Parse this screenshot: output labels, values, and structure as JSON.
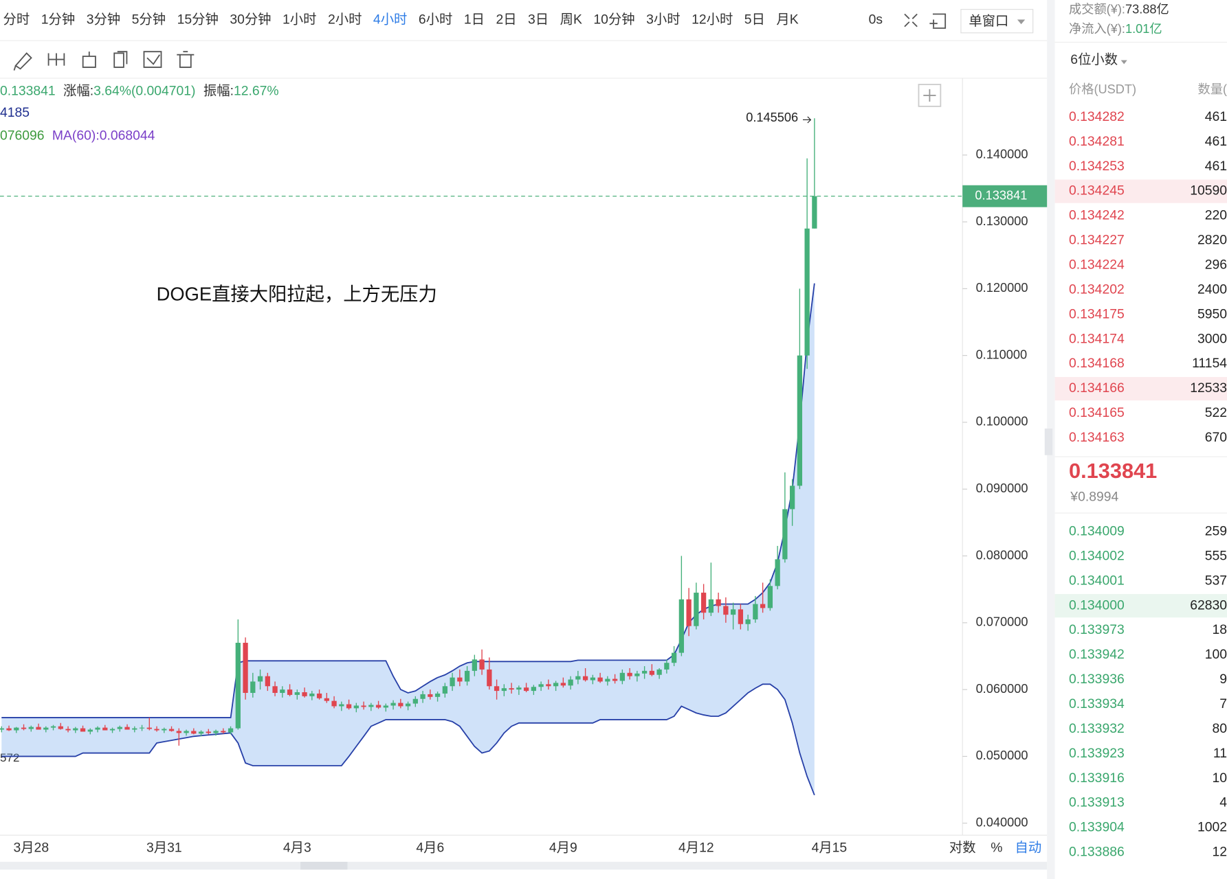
{
  "toolbar": {
    "intervals": [
      "分时",
      "1分钟",
      "3分钟",
      "5分钟",
      "15分钟",
      "30分钟",
      "1小时",
      "2小时",
      "4小时",
      "6小时",
      "1日",
      "2日",
      "3日",
      "周K",
      "10分钟",
      "3小时",
      "12小时",
      "5日",
      "月K"
    ],
    "active": 8,
    "timer": "0s",
    "window": "单窗口"
  },
  "legend": {
    "change_label": "涨幅:",
    "change": "3.64%(0.004701)",
    "amp_label": "振幅:",
    "amp": "12.67%",
    "boll": "4185",
    "ma_a": "076096",
    "ma60": "MA(60):0.068044",
    "band_low": "572"
  },
  "chart_data": {
    "type": "candlestick",
    "annotation": "DOGE直接大阳拉起，上方无压力",
    "categories": [
      null,
      null,
      null,
      null,
      "3月28",
      null,
      null,
      null,
      null,
      null,
      null,
      null,
      null,
      null,
      null,
      null,
      null,
      null,
      null,
      null,
      null,
      null,
      "3月31",
      null,
      null,
      null,
      null,
      null,
      null,
      null,
      null,
      null,
      null,
      null,
      null,
      null,
      null,
      null,
      null,
      null,
      "4月3",
      null,
      null,
      null,
      null,
      null,
      null,
      null,
      null,
      null,
      null,
      null,
      null,
      null,
      null,
      null,
      null,
      null,
      "4月6",
      null,
      null,
      null,
      null,
      null,
      null,
      null,
      null,
      null,
      null,
      null,
      null,
      null,
      null,
      null,
      null,
      null,
      "4月9",
      null,
      null,
      null,
      null,
      null,
      null,
      null,
      null,
      null,
      null,
      null,
      null,
      null,
      null,
      null,
      null,
      null,
      "4月12",
      null,
      null,
      null,
      null,
      null,
      null,
      null,
      null,
      null,
      null,
      null,
      null,
      null,
      null,
      null,
      null,
      null,
      "4月15"
    ],
    "candles": [
      [
        0.054,
        0.0545,
        0.0536,
        0.0542
      ],
      [
        0.0542,
        0.0546,
        0.0538,
        0.0539
      ],
      [
        0.0539,
        0.0544,
        0.0535,
        0.0543
      ],
      [
        0.0543,
        0.0548,
        0.0539,
        0.0541
      ],
      [
        0.0541,
        0.0546,
        0.0537,
        0.0544
      ],
      [
        0.0544,
        0.0549,
        0.054,
        0.054
      ],
      [
        0.054,
        0.0545,
        0.0536,
        0.0543
      ],
      [
        0.0543,
        0.0547,
        0.0539,
        0.0545
      ],
      [
        0.0545,
        0.055,
        0.054,
        0.0541
      ],
      [
        0.0541,
        0.0545,
        0.0536,
        0.0539
      ],
      [
        0.0539,
        0.0544,
        0.0535,
        0.0542
      ],
      [
        0.0542,
        0.0546,
        0.0538,
        0.0537
      ],
      [
        0.0537,
        0.0542,
        0.0533,
        0.054
      ],
      [
        0.054,
        0.0545,
        0.0536,
        0.0543
      ],
      [
        0.0543,
        0.0547,
        0.0539,
        0.0539
      ],
      [
        0.0539,
        0.0543,
        0.0535,
        0.0541
      ],
      [
        0.0541,
        0.0546,
        0.0537,
        0.0544
      ],
      [
        0.0544,
        0.0548,
        0.054,
        0.054
      ],
      [
        0.054,
        0.0545,
        0.0536,
        0.0542
      ],
      [
        0.0542,
        0.0547,
        0.0538,
        0.0543
      ],
      [
        0.0543,
        0.0558,
        0.0539,
        0.0541
      ],
      [
        0.0541,
        0.0545,
        0.0537,
        0.0539
      ],
      [
        0.0539,
        0.0543,
        0.0535,
        0.0541
      ],
      [
        0.0541,
        0.0545,
        0.0537,
        0.0538
      ],
      [
        0.0538,
        0.0542,
        0.0516,
        0.0535
      ],
      [
        0.0535,
        0.054,
        0.0531,
        0.0538
      ],
      [
        0.0538,
        0.0542,
        0.0533,
        0.0534
      ],
      [
        0.0534,
        0.0539,
        0.053,
        0.0537
      ],
      [
        0.0537,
        0.0541,
        0.0533,
        0.0535
      ],
      [
        0.0535,
        0.054,
        0.0531,
        0.0538
      ],
      [
        0.0538,
        0.0542,
        0.0534,
        0.0536
      ],
      [
        0.0536,
        0.0545,
        0.0533,
        0.0542
      ],
      [
        0.0542,
        0.0705,
        0.054,
        0.067
      ],
      [
        0.067,
        0.0678,
        0.0585,
        0.0595
      ],
      [
        0.0595,
        0.0625,
        0.0588,
        0.0612
      ],
      [
        0.0612,
        0.063,
        0.06,
        0.062
      ],
      [
        0.062,
        0.0625,
        0.0598,
        0.0605
      ],
      [
        0.0605,
        0.0612,
        0.059,
        0.0595
      ],
      [
        0.0595,
        0.0605,
        0.0588,
        0.06
      ],
      [
        0.06,
        0.0608,
        0.059,
        0.0592
      ],
      [
        0.0592,
        0.06,
        0.0585,
        0.0596
      ],
      [
        0.0596,
        0.0603,
        0.0588,
        0.059
      ],
      [
        0.059,
        0.0598,
        0.0584,
        0.0594
      ],
      [
        0.0594,
        0.06,
        0.0585,
        0.0587
      ],
      [
        0.0587,
        0.0595,
        0.058,
        0.0583
      ],
      [
        0.0583,
        0.059,
        0.0572,
        0.0575
      ],
      [
        0.0575,
        0.0582,
        0.0568,
        0.0578
      ],
      [
        0.0578,
        0.0585,
        0.057,
        0.0572
      ],
      [
        0.0572,
        0.058,
        0.0566,
        0.0576
      ],
      [
        0.0576,
        0.0582,
        0.057,
        0.0574
      ],
      [
        0.0574,
        0.058,
        0.0568,
        0.0577
      ],
      [
        0.0577,
        0.0583,
        0.0571,
        0.0573
      ],
      [
        0.0573,
        0.0579,
        0.0567,
        0.0576
      ],
      [
        0.0576,
        0.0584,
        0.057,
        0.058
      ],
      [
        0.058,
        0.0586,
        0.0572,
        0.0575
      ],
      [
        0.0575,
        0.0582,
        0.0569,
        0.0579
      ],
      [
        0.0579,
        0.059,
        0.0574,
        0.0586
      ],
      [
        0.0586,
        0.0598,
        0.058,
        0.0593
      ],
      [
        0.0593,
        0.06,
        0.0585,
        0.0589
      ],
      [
        0.0589,
        0.0597,
        0.0582,
        0.0594
      ],
      [
        0.0594,
        0.061,
        0.0588,
        0.0605
      ],
      [
        0.0605,
        0.0625,
        0.0598,
        0.0618
      ],
      [
        0.0618,
        0.063,
        0.0605,
        0.0612
      ],
      [
        0.0612,
        0.0635,
        0.0606,
        0.0628
      ],
      [
        0.0628,
        0.0652,
        0.062,
        0.0645
      ],
      [
        0.0645,
        0.066,
        0.0622,
        0.063
      ],
      [
        0.063,
        0.0648,
        0.06,
        0.0605
      ],
      [
        0.0605,
        0.0615,
        0.0585,
        0.0598
      ],
      [
        0.0598,
        0.0608,
        0.059,
        0.0602
      ],
      [
        0.0602,
        0.061,
        0.0594,
        0.06
      ],
      [
        0.06,
        0.0606,
        0.0592,
        0.0603
      ],
      [
        0.0603,
        0.061,
        0.0596,
        0.0598
      ],
      [
        0.0598,
        0.0607,
        0.0592,
        0.0604
      ],
      [
        0.0604,
        0.0612,
        0.0598,
        0.0608
      ],
      [
        0.0608,
        0.0615,
        0.06,
        0.0605
      ],
      [
        0.0605,
        0.0613,
        0.0598,
        0.061
      ],
      [
        0.061,
        0.0618,
        0.0603,
        0.0606
      ],
      [
        0.0606,
        0.062,
        0.06,
        0.0615
      ],
      [
        0.0615,
        0.0628,
        0.0608,
        0.062
      ],
      [
        0.062,
        0.0632,
        0.0612,
        0.0614
      ],
      [
        0.0614,
        0.0622,
        0.0608,
        0.0618
      ],
      [
        0.0618,
        0.0625,
        0.061,
        0.0612
      ],
      [
        0.0612,
        0.062,
        0.0606,
        0.0616
      ],
      [
        0.0616,
        0.0623,
        0.0609,
        0.0613
      ],
      [
        0.0613,
        0.063,
        0.0608,
        0.0625
      ],
      [
        0.0625,
        0.0632,
        0.0615,
        0.062
      ],
      [
        0.062,
        0.0628,
        0.0612,
        0.0624
      ],
      [
        0.0624,
        0.0635,
        0.0616,
        0.0628
      ],
      [
        0.0628,
        0.0638,
        0.062,
        0.0622
      ],
      [
        0.0622,
        0.0632,
        0.0616,
        0.063
      ],
      [
        0.063,
        0.0645,
        0.0624,
        0.064
      ],
      [
        0.064,
        0.0665,
        0.0635,
        0.0655
      ],
      [
        0.0655,
        0.08,
        0.065,
        0.0735
      ],
      [
        0.0735,
        0.0752,
        0.068,
        0.0695
      ],
      [
        0.0695,
        0.076,
        0.069,
        0.0745
      ],
      [
        0.0745,
        0.0758,
        0.0705,
        0.0715
      ],
      [
        0.0715,
        0.079,
        0.071,
        0.0735
      ],
      [
        0.0735,
        0.0745,
        0.0715,
        0.0725
      ],
      [
        0.0725,
        0.0738,
        0.07,
        0.0712
      ],
      [
        0.0712,
        0.073,
        0.069,
        0.072
      ],
      [
        0.072,
        0.0728,
        0.069,
        0.0698
      ],
      [
        0.0698,
        0.0712,
        0.0688,
        0.0705
      ],
      [
        0.0705,
        0.074,
        0.07,
        0.0728
      ],
      [
        0.0728,
        0.076,
        0.0715,
        0.0722
      ],
      [
        0.0722,
        0.0765,
        0.0718,
        0.0755
      ],
      [
        0.0755,
        0.0815,
        0.075,
        0.0795
      ],
      [
        0.0795,
        0.0925,
        0.079,
        0.087
      ],
      [
        0.087,
        0.0915,
        0.0845,
        0.0905
      ],
      [
        0.0905,
        0.12,
        0.09,
        0.11
      ],
      [
        0.11,
        0.1395,
        0.108,
        0.129
      ],
      [
        0.129,
        0.145506,
        0.129,
        0.133841
      ],
      null,
      null
    ],
    "boll_upper": [
      0.0558,
      0.0558,
      0.0558,
      0.0558,
      0.0558,
      0.0558,
      0.0558,
      0.0558,
      0.0558,
      0.0558,
      0.0558,
      0.0558,
      0.0558,
      0.0558,
      0.0558,
      0.0558,
      0.0558,
      0.0558,
      0.0558,
      0.0558,
      0.0558,
      0.0558,
      0.0558,
      0.0558,
      0.0558,
      0.0558,
      0.0558,
      0.0558,
      0.0558,
      0.0558,
      0.0558,
      0.0558,
      0.064,
      0.0643,
      0.0643,
      0.0643,
      0.0643,
      0.0643,
      0.0643,
      0.0643,
      0.0643,
      0.0643,
      0.0643,
      0.0643,
      0.0643,
      0.0643,
      0.0643,
      0.0643,
      0.0643,
      0.0643,
      0.0643,
      0.0643,
      0.0643,
      0.062,
      0.06,
      0.0595,
      0.0598,
      0.0605,
      0.0612,
      0.0618,
      0.0622,
      0.0628,
      0.0635,
      0.064,
      0.0642,
      0.0642,
      0.0642,
      0.0642,
      0.0642,
      0.0642,
      0.0642,
      0.0642,
      0.0642,
      0.0642,
      0.0642,
      0.0642,
      0.0642,
      0.0642,
      0.0644,
      0.0644,
      0.0644,
      0.0644,
      0.0644,
      0.0644,
      0.0644,
      0.0644,
      0.0644,
      0.0644,
      0.0644,
      0.0644,
      0.0644,
      0.0652,
      0.0675,
      0.07,
      0.0712,
      0.072,
      0.0725,
      0.0728,
      0.0728,
      0.0728,
      0.0728,
      0.0728,
      0.0735,
      0.0745,
      0.076,
      0.079,
      0.084,
      0.09,
      0.1,
      0.112,
      0.1208,
      null,
      null
    ],
    "boll_lower": [
      0.05,
      0.05,
      0.05,
      0.05,
      0.05,
      0.05,
      0.05,
      0.05,
      0.05,
      0.05,
      0.05,
      0.0505,
      0.0505,
      0.0505,
      0.0505,
      0.0505,
      0.0505,
      0.0505,
      0.0505,
      0.0505,
      0.0505,
      0.052,
      0.0522,
      0.0524,
      0.0526,
      0.0528,
      0.053,
      0.0531,
      0.0532,
      0.0533,
      0.0534,
      0.0535,
      0.052,
      0.049,
      0.0486,
      0.0486,
      0.0486,
      0.0486,
      0.0486,
      0.0486,
      0.0486,
      0.0486,
      0.0486,
      0.0486,
      0.0486,
      0.0486,
      0.0486,
      0.05,
      0.0515,
      0.053,
      0.0545,
      0.055,
      0.0555,
      0.0555,
      0.0555,
      0.0555,
      0.0555,
      0.0555,
      0.0555,
      0.0555,
      0.0555,
      0.0552,
      0.0545,
      0.053,
      0.0515,
      0.0505,
      0.0508,
      0.052,
      0.0535,
      0.0545,
      0.055,
      0.055,
      0.055,
      0.055,
      0.055,
      0.055,
      0.055,
      0.055,
      0.055,
      0.055,
      0.055,
      0.0555,
      0.0555,
      0.0555,
      0.0555,
      0.0555,
      0.0555,
      0.0555,
      0.0555,
      0.0555,
      0.0555,
      0.056,
      0.0575,
      0.057,
      0.0565,
      0.0562,
      0.056,
      0.056,
      0.0565,
      0.0575,
      0.0585,
      0.0595,
      0.0602,
      0.0608,
      0.0608,
      0.06,
      0.0585,
      0.055,
      0.0505,
      0.047,
      0.0442,
      null,
      null
    ],
    "ylim": [
      0.0382,
      0.1515
    ],
    "yticks": [
      {
        "value": 0.04,
        "label": "0.040000"
      },
      {
        "value": 0.05,
        "label": "0.050000"
      },
      {
        "value": 0.06,
        "label": "0.060000"
      },
      {
        "value": 0.07,
        "label": "0.070000"
      },
      {
        "value": 0.08,
        "label": "0.080000"
      },
      {
        "value": 0.09,
        "label": "0.090000"
      },
      {
        "value": 0.1,
        "label": "0.100000"
      },
      {
        "value": 0.11,
        "label": "0.110000"
      },
      {
        "value": 0.12,
        "label": "0.120000"
      },
      {
        "value": 0.13,
        "label": "0.130000"
      },
      {
        "value": 0.14,
        "label": "0.140000"
      }
    ],
    "up_color": "#45b07a",
    "down_color": "#e0454f",
    "band_color": "#2740a8",
    "scale_options": [
      "对数",
      "%",
      "自动"
    ]
  },
  "panel": {
    "turnover_label": "成交额(¥):",
    "turnover": "73.88亿",
    "inflow_label": "净流入(¥):",
    "inflow": "1.01亿",
    "decimals": "6位小数",
    "headers": [
      "价格(USDT)",
      "数量("
    ],
    "asks": [
      [
        "0.134282",
        "461"
      ],
      [
        "0.134281",
        "461"
      ],
      [
        "0.134253",
        "461"
      ],
      [
        "0.134245",
        "10590"
      ],
      [
        "0.134242",
        "220"
      ],
      [
        "0.134227",
        "2820"
      ],
      [
        "0.134224",
        "296"
      ],
      [
        "0.134202",
        "2400"
      ],
      [
        "0.134175",
        "5950"
      ],
      [
        "0.134174",
        "3000"
      ],
      [
        "0.134168",
        "11154"
      ],
      [
        "0.134166",
        "12533"
      ],
      [
        "0.134165",
        "522"
      ],
      [
        "0.134163",
        "670"
      ]
    ],
    "asks_highlight": [
      3,
      11
    ],
    "cny": "¥0.8994",
    "bids": [
      [
        "0.134009",
        "259"
      ],
      [
        "0.134002",
        "555"
      ],
      [
        "0.134001",
        "537"
      ],
      [
        "0.134000",
        "62830"
      ],
      [
        "0.133973",
        "18"
      ],
      [
        "0.133942",
        "100"
      ],
      [
        "0.133936",
        "9"
      ],
      [
        "0.133934",
        "7"
      ],
      [
        "0.133932",
        "80"
      ],
      [
        "0.133923",
        "11"
      ],
      [
        "0.133916",
        "10"
      ],
      [
        "0.133913",
        "4"
      ],
      [
        "0.133904",
        "1002"
      ],
      [
        "0.133886",
        "12"
      ]
    ],
    "bids_highlight": [
      3
    ]
  }
}
